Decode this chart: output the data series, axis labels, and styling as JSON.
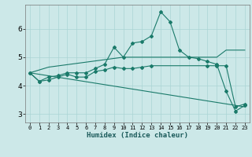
{
  "xlabel": "Humidex (Indice chaleur)",
  "bg_color": "#cce8e8",
  "grid_color": "#aad4d4",
  "line_color": "#1a7a6a",
  "xlim": [
    -0.5,
    23.5
  ],
  "ylim": [
    2.7,
    6.85
  ],
  "yticks": [
    3,
    4,
    5,
    6
  ],
  "xticks": [
    0,
    1,
    2,
    3,
    4,
    5,
    6,
    7,
    8,
    9,
    10,
    11,
    12,
    13,
    14,
    15,
    16,
    17,
    18,
    19,
    20,
    21,
    22,
    23
  ],
  "line1_x": [
    0,
    1,
    2,
    3,
    4,
    5,
    6,
    7,
    8,
    9,
    10,
    11,
    12,
    13,
    14,
    15,
    16,
    17,
    18,
    19,
    20,
    21,
    22,
    23
  ],
  "line1_y": [
    4.45,
    4.15,
    4.3,
    4.35,
    4.45,
    4.45,
    4.45,
    4.6,
    4.75,
    5.35,
    5.0,
    5.5,
    5.55,
    5.75,
    6.6,
    6.25,
    5.25,
    5.0,
    4.95,
    4.85,
    4.75,
    3.8,
    3.1,
    3.3
  ],
  "line2_x": [
    0,
    2,
    10,
    13,
    14,
    15,
    16,
    17,
    18,
    19,
    20,
    21,
    22,
    23
  ],
  "line2_y": [
    4.45,
    4.65,
    5.0,
    5.0,
    5.0,
    5.0,
    5.0,
    5.0,
    5.0,
    5.0,
    5.0,
    5.25,
    5.25,
    5.25
  ],
  "line3_x": [
    0,
    1,
    2,
    3,
    4,
    5,
    6,
    7,
    8,
    9,
    10,
    11,
    12,
    13,
    19,
    20,
    21,
    22,
    23
  ],
  "line3_y": [
    4.45,
    4.15,
    4.2,
    4.3,
    4.4,
    4.3,
    4.3,
    4.5,
    4.55,
    4.65,
    4.6,
    4.6,
    4.65,
    4.7,
    4.7,
    4.7,
    4.7,
    3.25,
    3.35
  ],
  "line4_x": [
    0,
    23
  ],
  "line4_y": [
    4.45,
    3.25
  ]
}
